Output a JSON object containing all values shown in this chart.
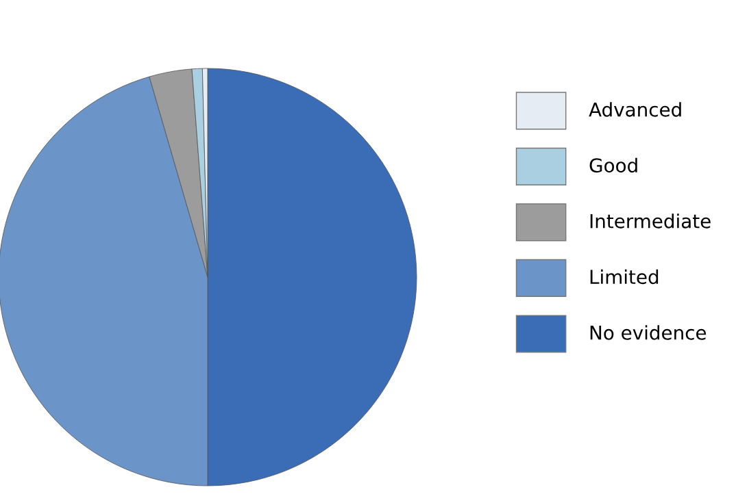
{
  "chart_data": {
    "type": "pie",
    "categories": [
      "No evidence",
      "Limited",
      "Intermediate",
      "Good",
      "Advanced"
    ],
    "values": [
      50,
      45.5,
      3.3,
      0.8,
      0.4
    ],
    "colors": [
      "#3a6db5",
      "#6b95c9",
      "#9c9c9c",
      "#a9cfe0",
      "#e6ecf3"
    ],
    "legend": "right"
  }
}
